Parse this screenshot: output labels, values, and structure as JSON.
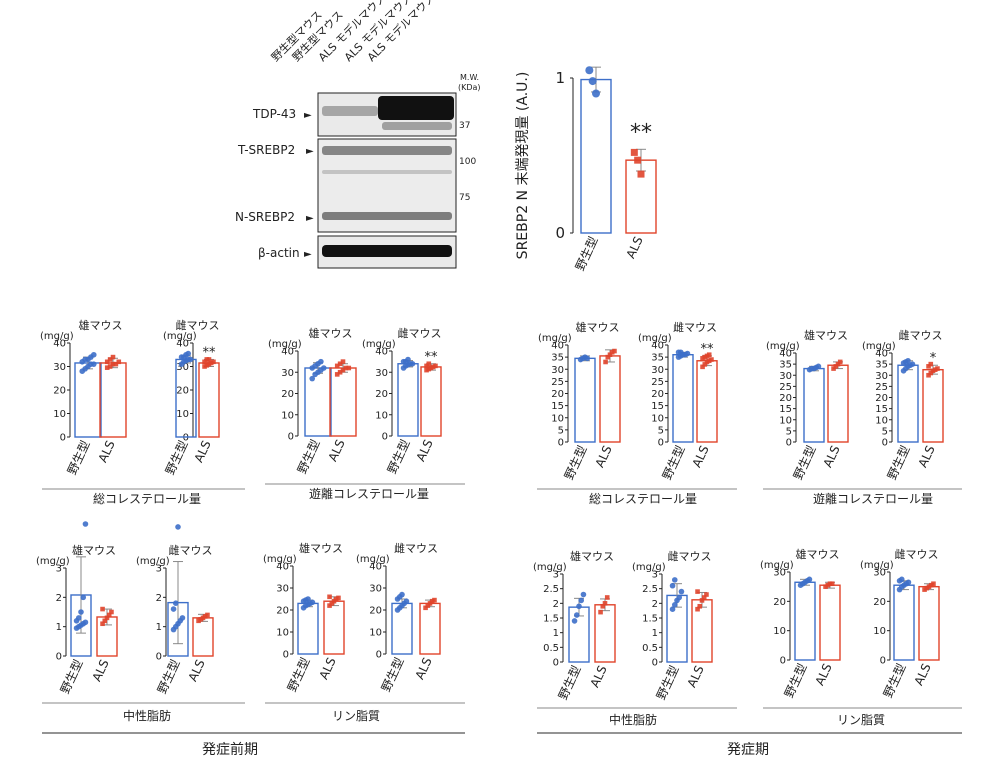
{
  "colors": {
    "wt": "#3d6fc9",
    "als": "#e0442b",
    "blot_bg": "#ececec",
    "band": "#1a1a1a"
  },
  "western_blot": {
    "lane_labels": [
      "野生型マウス",
      "野生型マウス",
      "ALS モデルマウス",
      "ALS モデルマウス",
      "ALS モデルマウス"
    ],
    "mw_header": "M.W.",
    "mw_unit": "(KDa)",
    "rows": [
      {
        "label": "TDP-43",
        "markers": [
          "37"
        ]
      },
      {
        "label": "T-SREBP2",
        "markers": [
          "100",
          "75"
        ]
      },
      {
        "label": "N-SREBP2",
        "markers": []
      },
      {
        "label": "β-actin",
        "markers": []
      }
    ]
  },
  "chart_data": [
    {
      "id": "srebp2",
      "type": "bar",
      "ylabel": "SREBP2 N 末端発現量 (A.U.)",
      "categories": [
        "野生型",
        "ALS"
      ],
      "values": [
        0.99,
        0.47
      ],
      "errors": [
        0.08,
        0.07
      ],
      "ylim": [
        0,
        1
      ],
      "yticks": [
        0,
        1
      ],
      "points": [
        [
          1.05,
          0.98,
          0.9
        ],
        [
          0.52,
          0.47,
          0.38
        ]
      ],
      "sig": "**"
    },
    {
      "id": "pre_tc_m",
      "type": "bar",
      "title": "雄マウス",
      "unit": "(mg/g)",
      "categories": [
        "野生型",
        "ALS"
      ],
      "values": [
        31.5,
        31.5
      ],
      "errors": [
        2.5,
        2
      ],
      "ylim": [
        0,
        40
      ],
      "yticks": [
        0,
        10,
        20,
        30,
        40
      ],
      "points": [
        [
          28,
          29,
          30,
          31,
          31,
          32,
          33,
          33,
          34,
          35
        ],
        [
          29.5,
          30,
          31,
          31,
          32,
          32,
          33,
          34
        ]
      ],
      "sig": ""
    },
    {
      "id": "pre_tc_f",
      "type": "bar",
      "title": "雌マウス",
      "unit": "(mg/g)",
      "categories": [
        "野生型",
        "ALS"
      ],
      "values": [
        33,
        31.5
      ],
      "errors": [
        1.5,
        1.5
      ],
      "ylim": [
        0,
        40
      ],
      "yticks": [
        0,
        10,
        20,
        30,
        40
      ],
      "points": [
        [
          31,
          32,
          32.5,
          33,
          33,
          34,
          34,
          35,
          35.5
        ],
        [
          30,
          30.5,
          31,
          31.5,
          32,
          32,
          33,
          33
        ]
      ],
      "sig": "**"
    },
    {
      "id": "pre_fc_m",
      "type": "bar",
      "title": "雄マウス",
      "unit": "(mg/g)",
      "categories": [
        "野生型",
        "ALS"
      ],
      "values": [
        32,
        32
      ],
      "errors": [
        2.5,
        2
      ],
      "ylim": [
        0,
        40
      ],
      "yticks": [
        0,
        10,
        20,
        30,
        40
      ],
      "points": [
        [
          27,
          29,
          30,
          31,
          32,
          32,
          33,
          34,
          35
        ],
        [
          29,
          30,
          31,
          32,
          32,
          33,
          34,
          35
        ]
      ],
      "sig": ""
    },
    {
      "id": "pre_fc_f",
      "type": "bar",
      "title": "雌マウス",
      "unit": "(mg/g)",
      "categories": [
        "野生型",
        "ALS"
      ],
      "values": [
        34,
        32.5
      ],
      "errors": [
        1.5,
        1.5
      ],
      "ylim": [
        0,
        40
      ],
      "yticks": [
        0,
        10,
        20,
        30,
        40
      ],
      "points": [
        [
          32,
          33,
          33.5,
          34,
          34,
          35,
          35,
          36
        ],
        [
          31,
          31.5,
          32,
          32.5,
          33,
          33,
          34
        ]
      ],
      "sig": "**"
    },
    {
      "id": "on_tc_m",
      "type": "bar",
      "title": "雄マウス",
      "unit": "(mg/g)",
      "categories": [
        "野生型",
        "ALS"
      ],
      "values": [
        34.5,
        35.5
      ],
      "errors": [
        1,
        2.5
      ],
      "ylim": [
        0,
        40
      ],
      "yticks": [
        0,
        5,
        10,
        15,
        20,
        25,
        30,
        35,
        40
      ],
      "points": [
        [
          34,
          34.5,
          35,
          34.5
        ],
        [
          33,
          35,
          36,
          37,
          37.5
        ]
      ],
      "sig": ""
    },
    {
      "id": "on_tc_f",
      "type": "bar",
      "title": "雌マウス",
      "unit": "(mg/g)",
      "categories": [
        "野生型",
        "ALS"
      ],
      "values": [
        36,
        33.5
      ],
      "errors": [
        1,
        2
      ],
      "ylim": [
        0,
        40
      ],
      "yticks": [
        0,
        5,
        10,
        15,
        20,
        25,
        30,
        35,
        40
      ],
      "points": [
        [
          35,
          35.5,
          36,
          36,
          36.5,
          37,
          37,
          36
        ],
        [
          31,
          32,
          33,
          33.5,
          34,
          34.5,
          35,
          35.5,
          36
        ]
      ],
      "sig": "**"
    },
    {
      "id": "on_fc_m",
      "type": "bar",
      "title": "雄マウス",
      "unit": "(mg/g)",
      "categories": [
        "野生型",
        "ALS"
      ],
      "values": [
        33,
        34.5
      ],
      "errors": [
        1,
        1.5
      ],
      "ylim": [
        0,
        40
      ],
      "yticks": [
        0,
        5,
        10,
        15,
        20,
        25,
        30,
        35,
        40
      ],
      "points": [
        [
          32.5,
          33,
          33,
          33.5,
          34
        ],
        [
          33,
          34,
          35,
          36
        ]
      ],
      "sig": ""
    },
    {
      "id": "on_fc_f",
      "type": "bar",
      "title": "雌マウス",
      "unit": "(mg/g)",
      "categories": [
        "野生型",
        "ALS"
      ],
      "values": [
        34.5,
        32.5
      ],
      "errors": [
        2,
        2
      ],
      "ylim": [
        0,
        40
      ],
      "yticks": [
        0,
        5,
        10,
        15,
        20,
        25,
        30,
        35,
        40
      ],
      "points": [
        [
          32,
          33,
          34,
          34.5,
          35,
          35.5,
          36,
          36.5
        ],
        [
          30,
          31,
          32,
          32.5,
          33,
          34,
          35
        ]
      ],
      "sig": "*"
    },
    {
      "id": "pre_tg_m",
      "type": "bar",
      "title": "雄マウス",
      "unit": "(mg/g)",
      "categories": [
        "野生型",
        "ALS"
      ],
      "values": [
        2.08,
        1.33
      ],
      "errors": [
        1.3,
        0.27
      ],
      "ylim": [
        0,
        3
      ],
      "yticks": [
        0,
        1,
        2,
        3
      ],
      "points": [
        [
          0.95,
          1.0,
          1.05,
          1.1,
          1.15,
          1.2,
          1.3,
          1.5,
          2.0,
          4.5
        ],
        [
          1.1,
          1.2,
          1.3,
          1.4,
          1.5,
          1.6
        ]
      ],
      "sig": ""
    },
    {
      "id": "pre_tg_f",
      "type": "bar",
      "title": "雌マウス",
      "unit": "(mg/g)",
      "categories": [
        "野生型",
        "ALS"
      ],
      "values": [
        1.82,
        1.3
      ],
      "errors": [
        1.4,
        0.12
      ],
      "ylim": [
        0,
        3
      ],
      "yticks": [
        0,
        1,
        2,
        3
      ],
      "points": [
        [
          0.9,
          1.0,
          1.1,
          1.2,
          1.3,
          1.6,
          1.8,
          4.4
        ],
        [
          1.2,
          1.25,
          1.3,
          1.35,
          1.4
        ]
      ],
      "sig": ""
    },
    {
      "id": "pre_pl_m",
      "type": "bar",
      "title": "雄マウス",
      "unit": "(mg/g)",
      "categories": [
        "野生型",
        "ALS"
      ],
      "values": [
        23,
        24
      ],
      "errors": [
        1.5,
        2
      ],
      "ylim": [
        0,
        40
      ],
      "yticks": [
        0,
        10,
        20,
        30,
        40
      ],
      "points": [
        [
          21,
          22,
          22.5,
          23,
          23.5,
          24,
          24.5,
          25
        ],
        [
          22,
          23,
          24,
          25,
          25.5,
          26
        ]
      ],
      "sig": ""
    },
    {
      "id": "pre_pl_f",
      "type": "bar",
      "title": "雌マウス",
      "unit": "(mg/g)",
      "categories": [
        "野生型",
        "ALS"
      ],
      "values": [
        23,
        23
      ],
      "errors": [
        2,
        1.5
      ],
      "ylim": [
        0,
        40
      ],
      "yticks": [
        0,
        10,
        20,
        30,
        40
      ],
      "points": [
        [
          20,
          21,
          22,
          23,
          24,
          25,
          26,
          27
        ],
        [
          21,
          22,
          23,
          24,
          24.5
        ]
      ],
      "sig": ""
    },
    {
      "id": "on_tg_m",
      "type": "bar",
      "title": "雄マウス",
      "unit": "(mg/g)",
      "categories": [
        "野生型",
        "ALS"
      ],
      "values": [
        1.87,
        1.95
      ],
      "errors": [
        0.3,
        0.2
      ],
      "ylim": [
        0,
        3
      ],
      "yticks": [
        0,
        0.5,
        1,
        1.5,
        2,
        2.5,
        3
      ],
      "points": [
        [
          1.4,
          1.6,
          1.9,
          2.1,
          2.3
        ],
        [
          1.7,
          1.9,
          2.0,
          2.2
        ]
      ],
      "sig": ""
    },
    {
      "id": "on_tg_f",
      "type": "bar",
      "title": "雌マウス",
      "unit": "(mg/g)",
      "categories": [
        "野生型",
        "ALS"
      ],
      "values": [
        2.27,
        2.12
      ],
      "errors": [
        0.4,
        0.25
      ],
      "ylim": [
        0,
        3
      ],
      "yticks": [
        0,
        0.5,
        1,
        1.5,
        2,
        2.5,
        3
      ],
      "points": [
        [
          1.8,
          1.95,
          2.1,
          2.2,
          2.4,
          2.6,
          2.8
        ],
        [
          1.8,
          1.9,
          2.1,
          2.2,
          2.3,
          2.4
        ]
      ],
      "sig": ""
    },
    {
      "id": "on_pl_m",
      "type": "bar",
      "title": "雄マウス",
      "unit": "(mg/g)",
      "categories": [
        "野生型",
        "ALS"
      ],
      "values": [
        26.5,
        25.5
      ],
      "errors": [
        1,
        1
      ],
      "ylim": [
        0,
        30
      ],
      "yticks": [
        0,
        10,
        20,
        30
      ],
      "points": [
        [
          25.5,
          26,
          26.5,
          27,
          27.5
        ],
        [
          25,
          25.5,
          26,
          26
        ]
      ],
      "sig": ""
    },
    {
      "id": "on_pl_f",
      "type": "bar",
      "title": "雌マウス",
      "unit": "(mg/g)",
      "categories": [
        "野生型",
        "ALS"
      ],
      "values": [
        25.5,
        25
      ],
      "errors": [
        1.5,
        1
      ],
      "ylim": [
        0,
        30
      ],
      "yticks": [
        0,
        10,
        20,
        30
      ],
      "points": [
        [
          24,
          25,
          25.5,
          26,
          26.5,
          27,
          27.5
        ],
        [
          24,
          24.5,
          25,
          25.5,
          26
        ]
      ],
      "sig": ""
    }
  ],
  "group_labels": {
    "pre_tc": "総コレステロール量",
    "pre_fc": "遊離コレステロール量",
    "pre_tg": "中性脂肪",
    "pre_pl": "リン脂質",
    "on_tc": "総コレステロール量",
    "on_fc": "遊離コレステロール量",
    "on_tg": "中性脂肪",
    "on_pl": "リン脂質"
  },
  "stage_labels": {
    "pre": "発症前期",
    "on": "発症期"
  }
}
